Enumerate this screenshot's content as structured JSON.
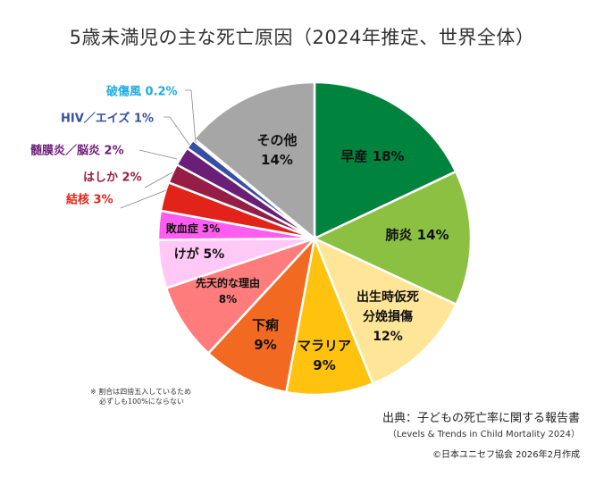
{
  "chart_data": {
    "type": "pie",
    "title": "5歳未満児の主な死亡原因（2024年推定、世界全体）",
    "start": "top",
    "direction": "clockwise",
    "slices": [
      {
        "label": "早産",
        "value": 18,
        "text": "18%",
        "color": "#00843D"
      },
      {
        "label": "肺炎",
        "value": 14,
        "text": "14%",
        "color": "#8BC043"
      },
      {
        "label": "出生時仮死分娩損傷",
        "value": 12,
        "text": "12%",
        "color": "#FFE597"
      },
      {
        "label": "マラリア",
        "value": 9,
        "text": "9%",
        "color": "#FFC20E"
      },
      {
        "label": "下痢",
        "value": 9,
        "text": "9%",
        "color": "#F26A21"
      },
      {
        "label": "先天的な理由",
        "value": 8,
        "text": "8%",
        "color": "#FF7C7C"
      },
      {
        "label": "けが",
        "value": 5,
        "text": "5%",
        "color": "#FFC8F5"
      },
      {
        "label": "敗血症",
        "value": 3,
        "text": "3%",
        "color": "#FF5CF0"
      },
      {
        "label": "結核",
        "value": 3,
        "text": "3%",
        "color": "#E2231A"
      },
      {
        "label": "はしか",
        "value": 2,
        "text": "2%",
        "color": "#961E46"
      },
      {
        "label": "髄膜炎／脳炎",
        "value": 2,
        "text": "2%",
        "color": "#6B1E78"
      },
      {
        "label": "HIV／エイズ",
        "value": 1,
        "text": "1%",
        "color": "#374EA2"
      },
      {
        "label": "破傷風",
        "value": 0.2,
        "text": "0.2%",
        "color": "#1CABE2"
      },
      {
        "label": "その他",
        "value": 14,
        "text": "14%",
        "color": "#A6A6A6"
      }
    ]
  },
  "display_labels": {
    "preterm": "早産 18%",
    "pneumonia": "肺炎 14%",
    "asphyxia_1": "出生時仮死",
    "asphyxia_2": "分娩損傷",
    "asphyxia_3": "12%",
    "malaria_1": "マラリア",
    "malaria_2": "9%",
    "diarrhoea_1": "下痢",
    "diarrhoea_2": "9%",
    "congenital_1": "先天的な理由",
    "congenital_2": "8%",
    "injury": "けが 5%",
    "sepsis": "敗血症 3%",
    "tb": "結核 3%",
    "measles": "はしか 2%",
    "meningitis": "髄膜炎／脳炎 2%",
    "hiv": "HIV／エイズ 1%",
    "tetanus": "破傷風 0.2%",
    "other_1": "その他",
    "other_2": "14%"
  },
  "note_1": "※ 割合は四捨五入しているため",
  "note_2": "必ずしも100%にならない",
  "source_1": "出典：子どもの死亡率に関する報告書",
  "source_2": "（Levels & Trends in Child Mortality 2024）",
  "copyright": "©日本ユニセフ協会 2026年2月作成"
}
